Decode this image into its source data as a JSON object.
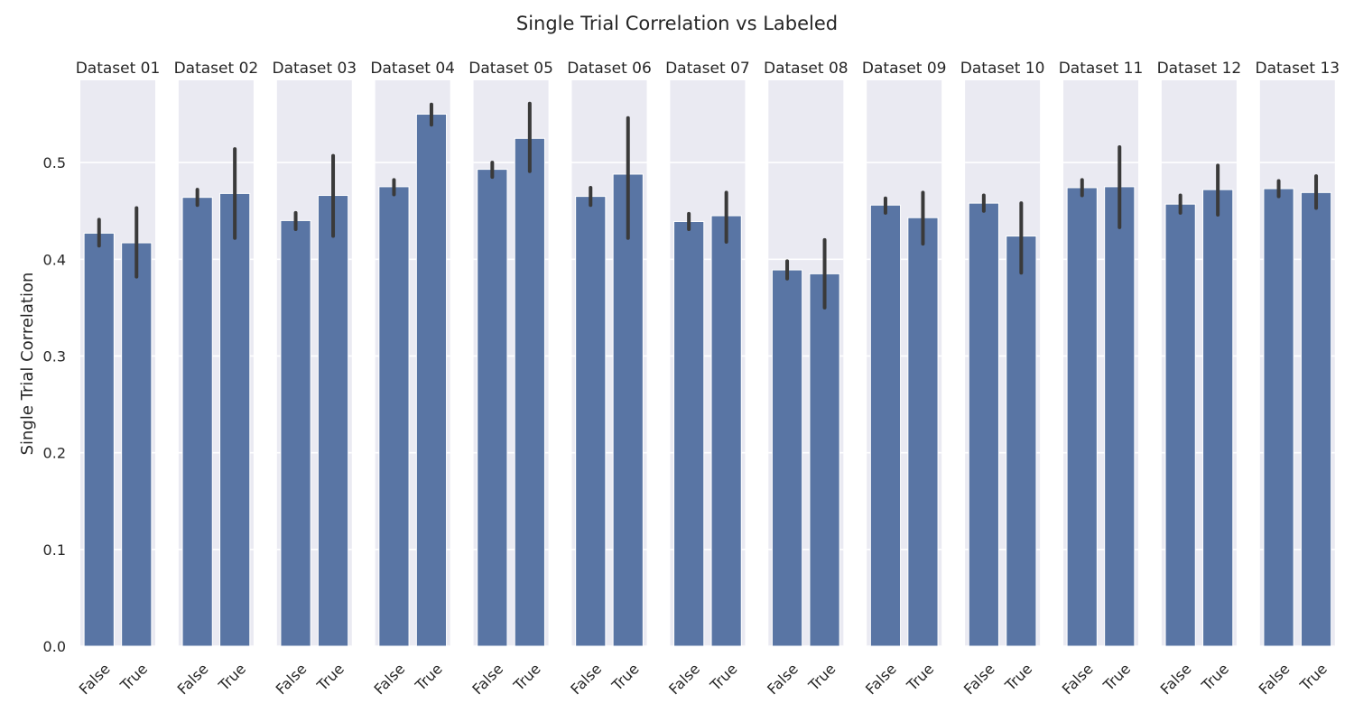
{
  "chart_data": {
    "type": "bar",
    "title": "Single Trial Correlation vs Labeled",
    "xlabel": "",
    "ylabel": "Single Trial Correlation",
    "ylim": [
      0,
      0.585
    ],
    "yticks": [
      "0.0",
      "0.1",
      "0.2",
      "0.3",
      "0.4",
      "0.5"
    ],
    "categories": [
      "False",
      "True"
    ],
    "grid": true,
    "colors": {
      "bar": "#5975a4",
      "error": "#3a3a3a",
      "panel_bg": "#eaeaf2",
      "grid": "#ffffff"
    },
    "panels": [
      {
        "title": "Dataset 01",
        "values": [
          0.427,
          0.417
        ],
        "err_low": [
          0.414,
          0.382
        ],
        "err_high": [
          0.441,
          0.453
        ]
      },
      {
        "title": "Dataset 02",
        "values": [
          0.464,
          0.468
        ],
        "err_low": [
          0.456,
          0.422
        ],
        "err_high": [
          0.472,
          0.514
        ]
      },
      {
        "title": "Dataset 03",
        "values": [
          0.44,
          0.466
        ],
        "err_low": [
          0.431,
          0.424
        ],
        "err_high": [
          0.448,
          0.507
        ]
      },
      {
        "title": "Dataset 04",
        "values": [
          0.475,
          0.55
        ],
        "err_low": [
          0.467,
          0.539
        ],
        "err_high": [
          0.482,
          0.56
        ]
      },
      {
        "title": "Dataset 05",
        "values": [
          0.493,
          0.525
        ],
        "err_low": [
          0.485,
          0.491
        ],
        "err_high": [
          0.5,
          0.561
        ]
      },
      {
        "title": "Dataset 06",
        "values": [
          0.465,
          0.488
        ],
        "err_low": [
          0.456,
          0.422
        ],
        "err_high": [
          0.474,
          0.546
        ]
      },
      {
        "title": "Dataset 07",
        "values": [
          0.439,
          0.445
        ],
        "err_low": [
          0.431,
          0.418
        ],
        "err_high": [
          0.447,
          0.469
        ]
      },
      {
        "title": "Dataset 08",
        "values": [
          0.389,
          0.385
        ],
        "err_low": [
          0.38,
          0.35
        ],
        "err_high": [
          0.398,
          0.42
        ]
      },
      {
        "title": "Dataset 09",
        "values": [
          0.456,
          0.443
        ],
        "err_low": [
          0.448,
          0.416
        ],
        "err_high": [
          0.463,
          0.469
        ]
      },
      {
        "title": "Dataset 10",
        "values": [
          0.458,
          0.424
        ],
        "err_low": [
          0.45,
          0.386
        ],
        "err_high": [
          0.466,
          0.458
        ]
      },
      {
        "title": "Dataset 11",
        "values": [
          0.474,
          0.475
        ],
        "err_low": [
          0.466,
          0.433
        ],
        "err_high": [
          0.482,
          0.516
        ]
      },
      {
        "title": "Dataset 12",
        "values": [
          0.457,
          0.472
        ],
        "err_low": [
          0.448,
          0.446
        ],
        "err_high": [
          0.466,
          0.497
        ]
      },
      {
        "title": "Dataset 13",
        "values": [
          0.473,
          0.469
        ],
        "err_low": [
          0.465,
          0.453
        ],
        "err_high": [
          0.481,
          0.486
        ]
      }
    ]
  }
}
